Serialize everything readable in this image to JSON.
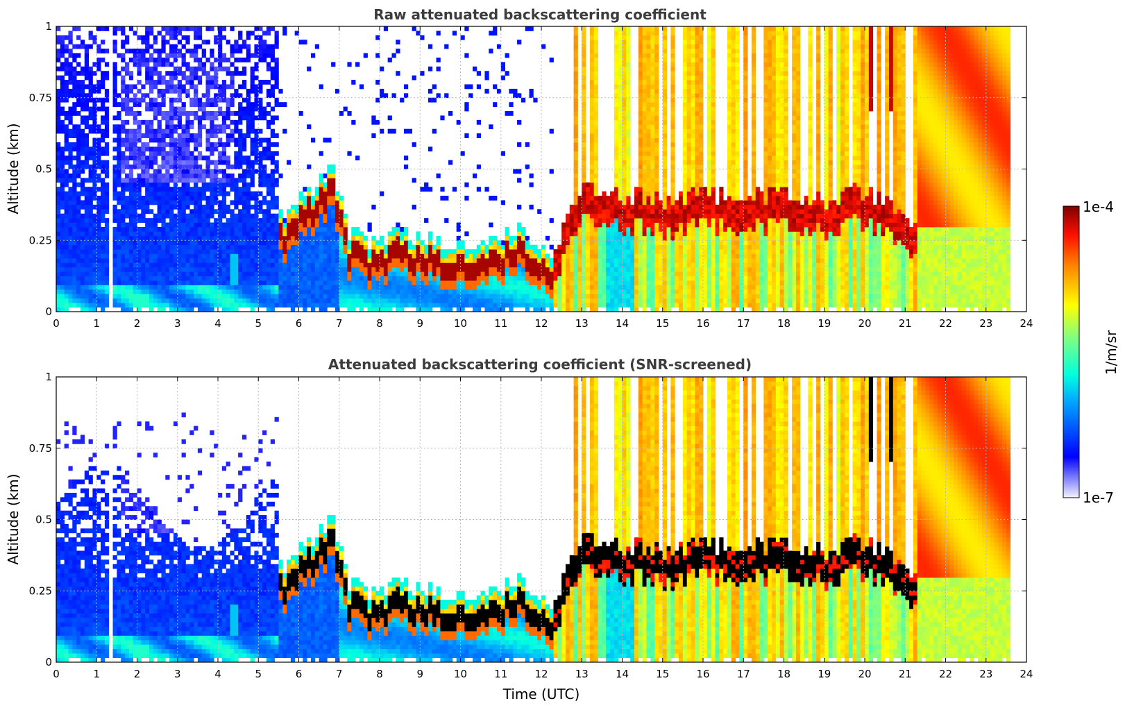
{
  "chart_data": [
    {
      "type": "heatmap",
      "title": "Raw attenuated backscattering coefficient",
      "xlabel": "",
      "ylabel": "Altitude (km)",
      "xlim": [
        0,
        24
      ],
      "ylim": [
        0,
        1
      ],
      "xticks": [
        "0",
        "1",
        "2",
        "3",
        "4",
        "5",
        "6",
        "7",
        "8",
        "9",
        "10",
        "11",
        "12",
        "13",
        "14",
        "15",
        "16",
        "17",
        "18",
        "19",
        "20",
        "21",
        "22",
        "23",
        "24"
      ],
      "yticks": [
        "0",
        "0.25",
        "0.5",
        "0.75",
        "1"
      ],
      "xtick_values": [
        0,
        1,
        2,
        3,
        4,
        5,
        6,
        7,
        8,
        9,
        10,
        11,
        12,
        13,
        14,
        15,
        16,
        17,
        18,
        19,
        20,
        21,
        22,
        23,
        24
      ],
      "ytick_values": [
        0,
        0.25,
        0.5,
        0.75,
        1
      ],
      "data_end_time": 23.65,
      "grid": true,
      "description_layers": {
        "layer_height_km": [
          0.3,
          0.3,
          0.36,
          0.42,
          0.24,
          0.2,
          0.2,
          0.2,
          0.2,
          0.18,
          0.14,
          0.4,
          0.36,
          0.36,
          0.36,
          0.36,
          0.36,
          0.36,
          0.36,
          0.36
        ],
        "layer_time_utc": [
          5.6,
          6.0,
          6.4,
          6.8,
          7.3,
          8.0,
          9.0,
          10.0,
          11.0,
          11.6,
          12.0,
          13.0,
          14.0,
          15.0,
          16.0,
          17.0,
          18.0,
          19.0,
          20.0,
          21.0
        ]
      }
    },
    {
      "type": "heatmap",
      "title": "Attenuated backscattering coefficient (SNR-screened)",
      "xlabel": "Time (UTC)",
      "ylabel": "Altitude (km)",
      "xlim": [
        0,
        24
      ],
      "ylim": [
        0,
        1
      ],
      "xticks": [
        "0",
        "1",
        "2",
        "3",
        "4",
        "5",
        "6",
        "7",
        "8",
        "9",
        "10",
        "11",
        "12",
        "13",
        "14",
        "15",
        "16",
        "17",
        "18",
        "19",
        "20",
        "21",
        "22",
        "23",
        "24"
      ],
      "yticks": [
        "0",
        "0.25",
        "0.5",
        "0.75",
        "1"
      ],
      "xtick_values": [
        0,
        1,
        2,
        3,
        4,
        5,
        6,
        7,
        8,
        9,
        10,
        11,
        12,
        13,
        14,
        15,
        16,
        17,
        18,
        19,
        20,
        21,
        22,
        23,
        24
      ],
      "ytick_values": [
        0,
        0.25,
        0.5,
        0.75,
        1
      ],
      "data_end_time": 23.65,
      "grid": true
    }
  ],
  "colorbar": {
    "label": "1/m/sr",
    "max_label": "1e-4",
    "min_label": "1e-7",
    "colormap": "jet",
    "colors": [
      "#f2f2ff",
      "#0000ff",
      "#00c8ff",
      "#80ff80",
      "#ffff00",
      "#ff8000",
      "#ff0000",
      "#800000"
    ]
  }
}
